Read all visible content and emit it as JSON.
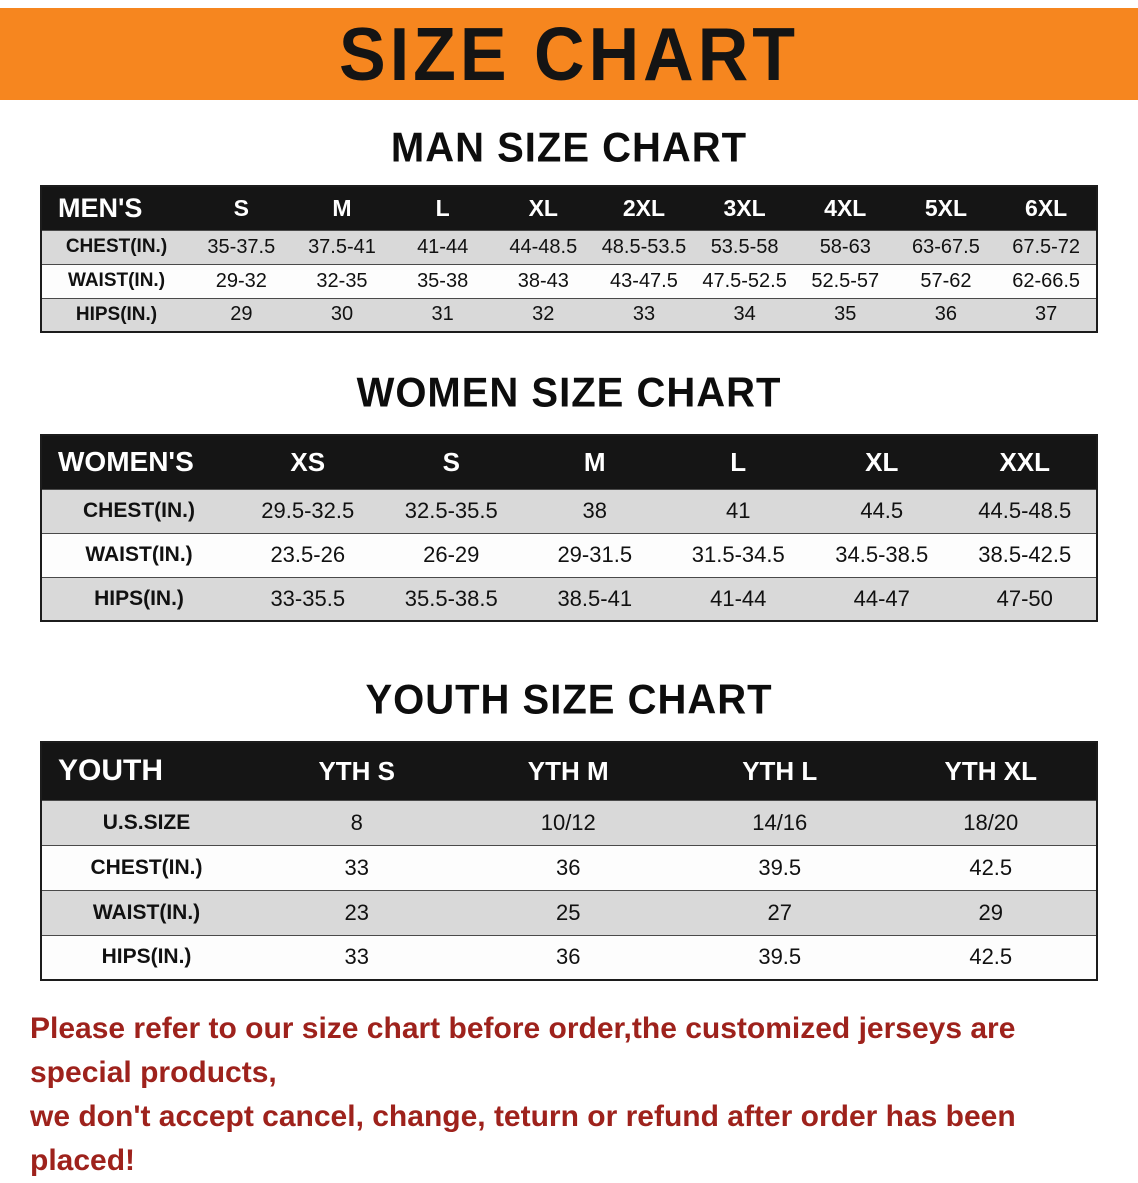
{
  "banner": {
    "title": "SIZE CHART"
  },
  "colors": {
    "banner_bg": "#F6861F",
    "table_header_bg": "#151515",
    "row_alt_gray": "#d9d9d9",
    "disclaimer_red": "#9E221C"
  },
  "sections": [
    {
      "id": "men",
      "heading": "MAN SIZE CHART",
      "table": {
        "corner": "MEN'S",
        "columns": [
          "S",
          "M",
          "L",
          "XL",
          "2XL",
          "3XL",
          "4XL",
          "5XL",
          "6XL"
        ],
        "rows": [
          {
            "label": "CHEST(IN.)",
            "values": [
              "35-37.5",
              "37.5-41",
              "41-44",
              "44-48.5",
              "48.5-53.5",
              "53.5-58",
              "58-63",
              "63-67.5",
              "67.5-72"
            ]
          },
          {
            "label": "WAIST(IN.)",
            "values": [
              "29-32",
              "32-35",
              "35-38",
              "38-43",
              "43-47.5",
              "47.5-52.5",
              "52.5-57",
              "57-62",
              "62-66.5"
            ]
          },
          {
            "label": "HIPS(IN.)",
            "values": [
              "29",
              "30",
              "31",
              "32",
              "33",
              "34",
              "35",
              "36",
              "37"
            ]
          }
        ]
      }
    },
    {
      "id": "women",
      "heading": "WOMEN SIZE CHART",
      "table": {
        "corner": "WOMEN'S",
        "columns": [
          "XS",
          "S",
          "M",
          "L",
          "XL",
          "XXL"
        ],
        "rows": [
          {
            "label": "CHEST(IN.)",
            "values": [
              "29.5-32.5",
              "32.5-35.5",
              "38",
              "41",
              "44.5",
              "44.5-48.5"
            ]
          },
          {
            "label": "WAIST(IN.)",
            "values": [
              "23.5-26",
              "26-29",
              "29-31.5",
              "31.5-34.5",
              "34.5-38.5",
              "38.5-42.5"
            ]
          },
          {
            "label": "HIPS(IN.)",
            "values": [
              "33-35.5",
              "35.5-38.5",
              "38.5-41",
              "41-44",
              "44-47",
              "47-50"
            ]
          }
        ]
      }
    },
    {
      "id": "youth",
      "heading": "YOUTH SIZE CHART",
      "table": {
        "corner": "YOUTH",
        "columns": [
          "YTH S",
          "YTH M",
          "YTH L",
          "YTH XL"
        ],
        "rows": [
          {
            "label": "U.S.SIZE",
            "values": [
              "8",
              "10/12",
              "14/16",
              "18/20"
            ]
          },
          {
            "label": "CHEST(IN.)",
            "values": [
              "33",
              "36",
              "39.5",
              "42.5"
            ]
          },
          {
            "label": "WAIST(IN.)",
            "values": [
              "23",
              "25",
              "27",
              "29"
            ]
          },
          {
            "label": "HIPS(IN.)",
            "values": [
              "33",
              "36",
              "39.5",
              "42.5"
            ]
          }
        ]
      }
    }
  ],
  "disclaimer": {
    "line1": "Please refer to our size chart before order,the customized jerseys are special products,",
    "line2": "we don't accept cancel, change, teturn or refund after order has been placed!"
  }
}
